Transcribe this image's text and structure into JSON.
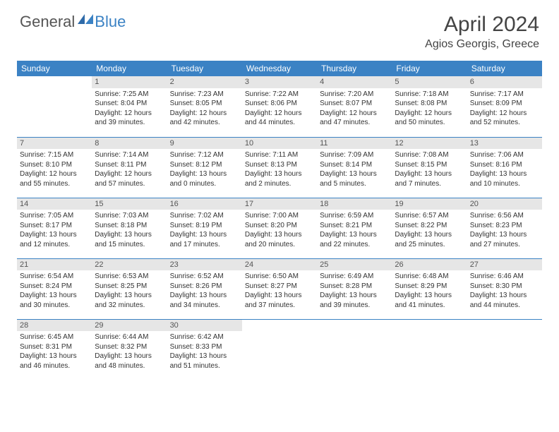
{
  "logo": {
    "text1": "General",
    "text2": "Blue"
  },
  "title": "April 2024",
  "location": "Agios Georgis, Greece",
  "colors": {
    "header_bg": "#3b82c4",
    "header_text": "#ffffff",
    "daynum_bg": "#e6e6e6",
    "daynum_text": "#555555",
    "border": "#3b82c4",
    "body_text": "#333333",
    "background": "#ffffff"
  },
  "typography": {
    "title_fontsize": 30,
    "location_fontsize": 16,
    "dayheader_fontsize": 12,
    "cell_fontsize": 10
  },
  "day_headers": [
    "Sunday",
    "Monday",
    "Tuesday",
    "Wednesday",
    "Thursday",
    "Friday",
    "Saturday"
  ],
  "weeks": [
    [
      {
        "n": "",
        "empty": true
      },
      {
        "n": "1",
        "sr": "Sunrise: 7:25 AM",
        "ss": "Sunset: 8:04 PM",
        "d1": "Daylight: 12 hours",
        "d2": "and 39 minutes."
      },
      {
        "n": "2",
        "sr": "Sunrise: 7:23 AM",
        "ss": "Sunset: 8:05 PM",
        "d1": "Daylight: 12 hours",
        "d2": "and 42 minutes."
      },
      {
        "n": "3",
        "sr": "Sunrise: 7:22 AM",
        "ss": "Sunset: 8:06 PM",
        "d1": "Daylight: 12 hours",
        "d2": "and 44 minutes."
      },
      {
        "n": "4",
        "sr": "Sunrise: 7:20 AM",
        "ss": "Sunset: 8:07 PM",
        "d1": "Daylight: 12 hours",
        "d2": "and 47 minutes."
      },
      {
        "n": "5",
        "sr": "Sunrise: 7:18 AM",
        "ss": "Sunset: 8:08 PM",
        "d1": "Daylight: 12 hours",
        "d2": "and 50 minutes."
      },
      {
        "n": "6",
        "sr": "Sunrise: 7:17 AM",
        "ss": "Sunset: 8:09 PM",
        "d1": "Daylight: 12 hours",
        "d2": "and 52 minutes."
      }
    ],
    [
      {
        "n": "7",
        "sr": "Sunrise: 7:15 AM",
        "ss": "Sunset: 8:10 PM",
        "d1": "Daylight: 12 hours",
        "d2": "and 55 minutes."
      },
      {
        "n": "8",
        "sr": "Sunrise: 7:14 AM",
        "ss": "Sunset: 8:11 PM",
        "d1": "Daylight: 12 hours",
        "d2": "and 57 minutes."
      },
      {
        "n": "9",
        "sr": "Sunrise: 7:12 AM",
        "ss": "Sunset: 8:12 PM",
        "d1": "Daylight: 13 hours",
        "d2": "and 0 minutes."
      },
      {
        "n": "10",
        "sr": "Sunrise: 7:11 AM",
        "ss": "Sunset: 8:13 PM",
        "d1": "Daylight: 13 hours",
        "d2": "and 2 minutes."
      },
      {
        "n": "11",
        "sr": "Sunrise: 7:09 AM",
        "ss": "Sunset: 8:14 PM",
        "d1": "Daylight: 13 hours",
        "d2": "and 5 minutes."
      },
      {
        "n": "12",
        "sr": "Sunrise: 7:08 AM",
        "ss": "Sunset: 8:15 PM",
        "d1": "Daylight: 13 hours",
        "d2": "and 7 minutes."
      },
      {
        "n": "13",
        "sr": "Sunrise: 7:06 AM",
        "ss": "Sunset: 8:16 PM",
        "d1": "Daylight: 13 hours",
        "d2": "and 10 minutes."
      }
    ],
    [
      {
        "n": "14",
        "sr": "Sunrise: 7:05 AM",
        "ss": "Sunset: 8:17 PM",
        "d1": "Daylight: 13 hours",
        "d2": "and 12 minutes."
      },
      {
        "n": "15",
        "sr": "Sunrise: 7:03 AM",
        "ss": "Sunset: 8:18 PM",
        "d1": "Daylight: 13 hours",
        "d2": "and 15 minutes."
      },
      {
        "n": "16",
        "sr": "Sunrise: 7:02 AM",
        "ss": "Sunset: 8:19 PM",
        "d1": "Daylight: 13 hours",
        "d2": "and 17 minutes."
      },
      {
        "n": "17",
        "sr": "Sunrise: 7:00 AM",
        "ss": "Sunset: 8:20 PM",
        "d1": "Daylight: 13 hours",
        "d2": "and 20 minutes."
      },
      {
        "n": "18",
        "sr": "Sunrise: 6:59 AM",
        "ss": "Sunset: 8:21 PM",
        "d1": "Daylight: 13 hours",
        "d2": "and 22 minutes."
      },
      {
        "n": "19",
        "sr": "Sunrise: 6:57 AM",
        "ss": "Sunset: 8:22 PM",
        "d1": "Daylight: 13 hours",
        "d2": "and 25 minutes."
      },
      {
        "n": "20",
        "sr": "Sunrise: 6:56 AM",
        "ss": "Sunset: 8:23 PM",
        "d1": "Daylight: 13 hours",
        "d2": "and 27 minutes."
      }
    ],
    [
      {
        "n": "21",
        "sr": "Sunrise: 6:54 AM",
        "ss": "Sunset: 8:24 PM",
        "d1": "Daylight: 13 hours",
        "d2": "and 30 minutes."
      },
      {
        "n": "22",
        "sr": "Sunrise: 6:53 AM",
        "ss": "Sunset: 8:25 PM",
        "d1": "Daylight: 13 hours",
        "d2": "and 32 minutes."
      },
      {
        "n": "23",
        "sr": "Sunrise: 6:52 AM",
        "ss": "Sunset: 8:26 PM",
        "d1": "Daylight: 13 hours",
        "d2": "and 34 minutes."
      },
      {
        "n": "24",
        "sr": "Sunrise: 6:50 AM",
        "ss": "Sunset: 8:27 PM",
        "d1": "Daylight: 13 hours",
        "d2": "and 37 minutes."
      },
      {
        "n": "25",
        "sr": "Sunrise: 6:49 AM",
        "ss": "Sunset: 8:28 PM",
        "d1": "Daylight: 13 hours",
        "d2": "and 39 minutes."
      },
      {
        "n": "26",
        "sr": "Sunrise: 6:48 AM",
        "ss": "Sunset: 8:29 PM",
        "d1": "Daylight: 13 hours",
        "d2": "and 41 minutes."
      },
      {
        "n": "27",
        "sr": "Sunrise: 6:46 AM",
        "ss": "Sunset: 8:30 PM",
        "d1": "Daylight: 13 hours",
        "d2": "and 44 minutes."
      }
    ],
    [
      {
        "n": "28",
        "sr": "Sunrise: 6:45 AM",
        "ss": "Sunset: 8:31 PM",
        "d1": "Daylight: 13 hours",
        "d2": "and 46 minutes."
      },
      {
        "n": "29",
        "sr": "Sunrise: 6:44 AM",
        "ss": "Sunset: 8:32 PM",
        "d1": "Daylight: 13 hours",
        "d2": "and 48 minutes."
      },
      {
        "n": "30",
        "sr": "Sunrise: 6:42 AM",
        "ss": "Sunset: 8:33 PM",
        "d1": "Daylight: 13 hours",
        "d2": "and 51 minutes."
      },
      {
        "n": "",
        "empty": true
      },
      {
        "n": "",
        "empty": true
      },
      {
        "n": "",
        "empty": true
      },
      {
        "n": "",
        "empty": true
      }
    ]
  ]
}
